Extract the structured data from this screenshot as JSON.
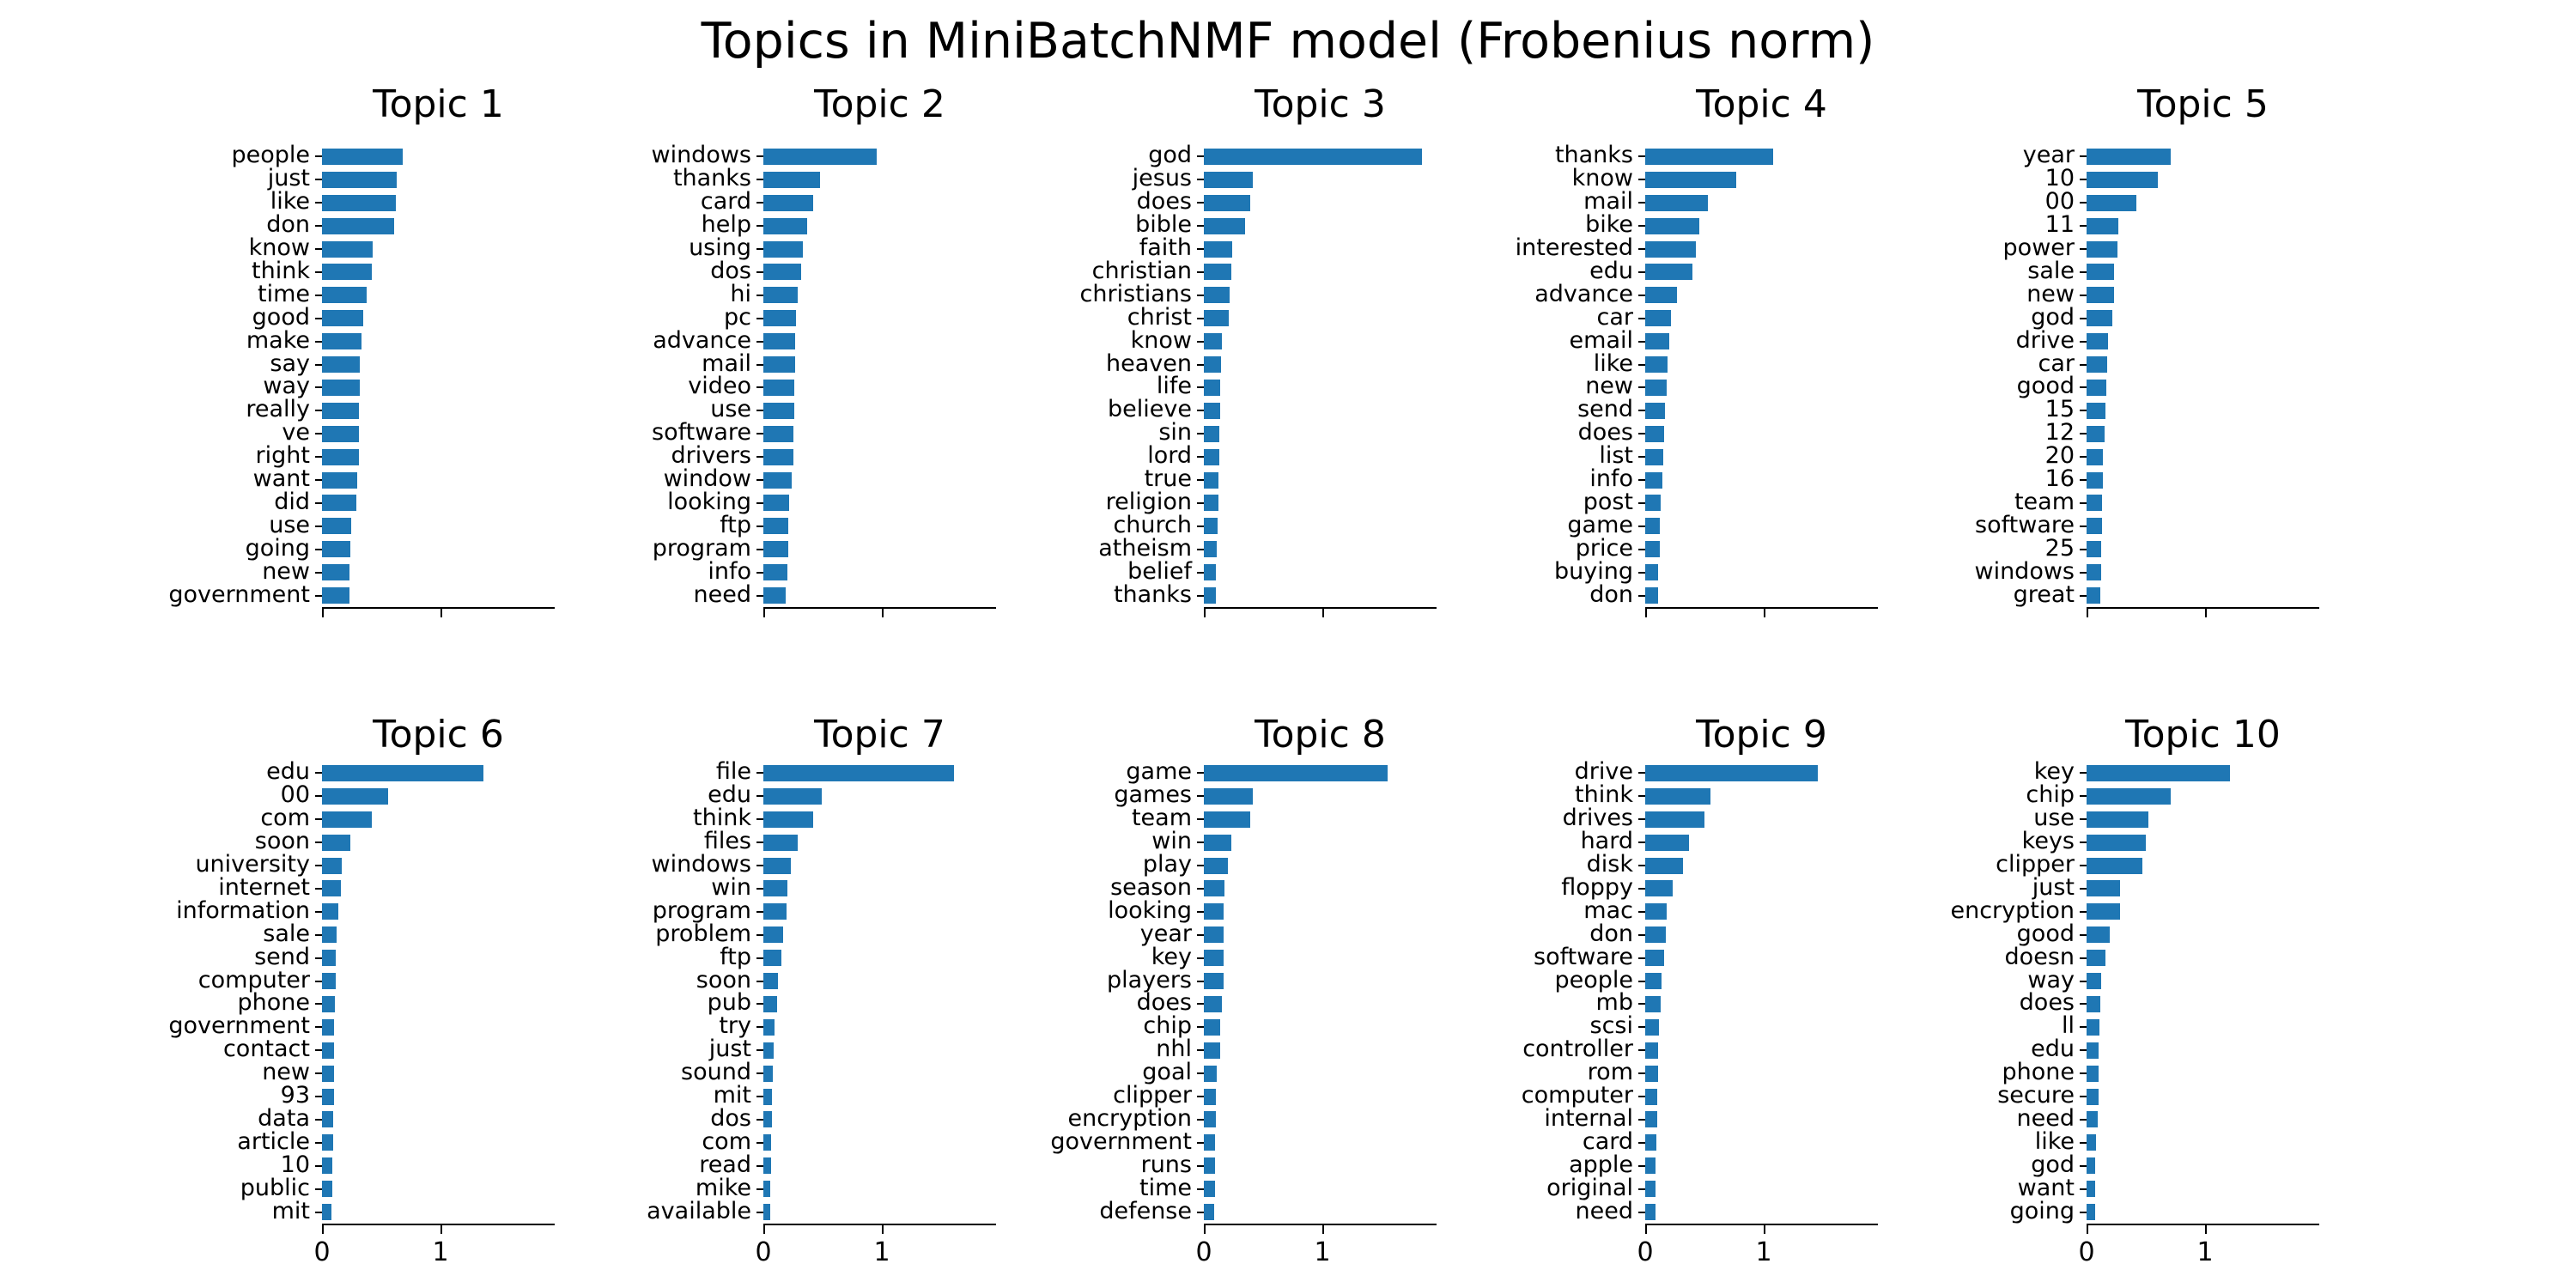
{
  "figure": {
    "title": "Topics in MiniBatchNMF model (Frobenius norm)",
    "bar_color": "#1f77b4",
    "text_color": "#000000",
    "xtick_labels": [
      "0",
      "1"
    ]
  },
  "chart_data": [
    {
      "type": "bar",
      "orientation": "horizontal",
      "title": "Topic 1",
      "xlim": [
        0,
        1.96
      ],
      "xticks": [
        0,
        1
      ],
      "categories": [
        "people",
        "just",
        "like",
        "don",
        "know",
        "think",
        "time",
        "good",
        "make",
        "say",
        "way",
        "really",
        "ve",
        "right",
        "want",
        "did",
        "use",
        "going",
        "new",
        "government"
      ],
      "values": [
        0.68,
        0.63,
        0.62,
        0.61,
        0.43,
        0.42,
        0.38,
        0.35,
        0.33,
        0.32,
        0.32,
        0.315,
        0.31,
        0.31,
        0.295,
        0.29,
        0.245,
        0.24,
        0.235,
        0.23
      ]
    },
    {
      "type": "bar",
      "orientation": "horizontal",
      "title": "Topic 2",
      "xlim": [
        0,
        1.96
      ],
      "xticks": [
        0,
        1
      ],
      "categories": [
        "windows",
        "thanks",
        "card",
        "help",
        "using",
        "dos",
        "hi",
        "pc",
        "advance",
        "mail",
        "video",
        "use",
        "software",
        "drivers",
        "window",
        "looking",
        "ftp",
        "program",
        "info",
        "need"
      ],
      "values": [
        0.96,
        0.48,
        0.42,
        0.37,
        0.335,
        0.32,
        0.29,
        0.275,
        0.27,
        0.265,
        0.26,
        0.26,
        0.255,
        0.25,
        0.24,
        0.215,
        0.21,
        0.21,
        0.2,
        0.19
      ]
    },
    {
      "type": "bar",
      "orientation": "horizontal",
      "title": "Topic 3",
      "xlim": [
        0,
        1.96
      ],
      "xticks": [
        0,
        1
      ],
      "categories": [
        "god",
        "jesus",
        "does",
        "bible",
        "faith",
        "christian",
        "christians",
        "christ",
        "know",
        "heaven",
        "life",
        "believe",
        "sin",
        "lord",
        "true",
        "religion",
        "church",
        "atheism",
        "belief",
        "thanks"
      ],
      "values": [
        1.84,
        0.41,
        0.39,
        0.35,
        0.24,
        0.235,
        0.22,
        0.21,
        0.15,
        0.145,
        0.14,
        0.137,
        0.134,
        0.13,
        0.125,
        0.12,
        0.115,
        0.11,
        0.105,
        0.103
      ]
    },
    {
      "type": "bar",
      "orientation": "horizontal",
      "title": "Topic 4",
      "xlim": [
        0,
        1.96
      ],
      "xticks": [
        0,
        1
      ],
      "categories": [
        "thanks",
        "know",
        "mail",
        "bike",
        "interested",
        "edu",
        "advance",
        "car",
        "email",
        "like",
        "new",
        "send",
        "does",
        "list",
        "info",
        "post",
        "game",
        "price",
        "buying",
        "don"
      ],
      "values": [
        1.08,
        0.77,
        0.53,
        0.46,
        0.43,
        0.4,
        0.27,
        0.22,
        0.2,
        0.19,
        0.18,
        0.17,
        0.16,
        0.155,
        0.145,
        0.13,
        0.125,
        0.12,
        0.112,
        0.11
      ]
    },
    {
      "type": "bar",
      "orientation": "horizontal",
      "title": "Topic 5",
      "xlim": [
        0,
        1.96
      ],
      "xticks": [
        0,
        1
      ],
      "categories": [
        "year",
        "10",
        "00",
        "11",
        "power",
        "sale",
        "new",
        "god",
        "drive",
        "car",
        "good",
        "15",
        "12",
        "20",
        "16",
        "team",
        "software",
        "25",
        "windows",
        "great"
      ],
      "values": [
        0.71,
        0.6,
        0.42,
        0.265,
        0.26,
        0.235,
        0.23,
        0.22,
        0.18,
        0.177,
        0.17,
        0.157,
        0.152,
        0.14,
        0.138,
        0.13,
        0.128,
        0.122,
        0.12,
        0.116
      ]
    },
    {
      "type": "bar",
      "orientation": "horizontal",
      "title": "Topic 6",
      "xlim": [
        0,
        1.96
      ],
      "xticks": [
        0,
        1
      ],
      "categories": [
        "edu",
        "00",
        "com",
        "soon",
        "university",
        "internet",
        "information",
        "sale",
        "send",
        "computer",
        "phone",
        "government",
        "contact",
        "new",
        "93",
        "data",
        "article",
        "10",
        "public",
        "mit"
      ],
      "values": [
        1.36,
        0.56,
        0.42,
        0.24,
        0.17,
        0.16,
        0.14,
        0.12,
        0.115,
        0.113,
        0.112,
        0.105,
        0.103,
        0.102,
        0.1,
        0.095,
        0.094,
        0.09,
        0.088,
        0.08
      ]
    },
    {
      "type": "bar",
      "orientation": "horizontal",
      "title": "Topic 7",
      "xlim": [
        0,
        1.96
      ],
      "xticks": [
        0,
        1
      ],
      "categories": [
        "file",
        "edu",
        "think",
        "files",
        "windows",
        "win",
        "program",
        "problem",
        "ftp",
        "soon",
        "pub",
        "try",
        "just",
        "sound",
        "mit",
        "dos",
        "com",
        "read",
        "mike",
        "available"
      ],
      "values": [
        1.61,
        0.49,
        0.42,
        0.29,
        0.23,
        0.205,
        0.195,
        0.17,
        0.15,
        0.12,
        0.117,
        0.097,
        0.085,
        0.077,
        0.072,
        0.07,
        0.068,
        0.063,
        0.06,
        0.058
      ]
    },
    {
      "type": "bar",
      "orientation": "horizontal",
      "title": "Topic 8",
      "xlim": [
        0,
        1.96
      ],
      "xticks": [
        0,
        1
      ],
      "categories": [
        "game",
        "games",
        "team",
        "win",
        "play",
        "season",
        "looking",
        "year",
        "key",
        "players",
        "does",
        "chip",
        "nhl",
        "goal",
        "clipper",
        "encryption",
        "government",
        "runs",
        "time",
        "defense"
      ],
      "values": [
        1.55,
        0.41,
        0.39,
        0.235,
        0.2,
        0.175,
        0.17,
        0.168,
        0.166,
        0.164,
        0.154,
        0.14,
        0.135,
        0.108,
        0.1,
        0.099,
        0.096,
        0.093,
        0.092,
        0.084
      ]
    },
    {
      "type": "bar",
      "orientation": "horizontal",
      "title": "Topic 9",
      "xlim": [
        0,
        1.96
      ],
      "xticks": [
        0,
        1
      ],
      "categories": [
        "drive",
        "think",
        "drives",
        "hard",
        "disk",
        "floppy",
        "mac",
        "don",
        "software",
        "people",
        "mb",
        "scsi",
        "controller",
        "rom",
        "computer",
        "internal",
        "card",
        "apple",
        "original",
        "need"
      ],
      "values": [
        1.46,
        0.55,
        0.5,
        0.37,
        0.32,
        0.23,
        0.18,
        0.175,
        0.157,
        0.14,
        0.133,
        0.118,
        0.111,
        0.106,
        0.102,
        0.1,
        0.097,
        0.09,
        0.089,
        0.085
      ]
    },
    {
      "type": "bar",
      "orientation": "horizontal",
      "title": "Topic 10",
      "xlim": [
        0,
        1.96
      ],
      "xticks": [
        0,
        1
      ],
      "categories": [
        "key",
        "chip",
        "use",
        "keys",
        "clipper",
        "just",
        "encryption",
        "good",
        "doesn",
        "way",
        "does",
        "ll",
        "edu",
        "phone",
        "secure",
        "need",
        "like",
        "god",
        "want",
        "going"
      ],
      "values": [
        1.21,
        0.71,
        0.52,
        0.5,
        0.47,
        0.285,
        0.28,
        0.195,
        0.16,
        0.125,
        0.117,
        0.107,
        0.103,
        0.102,
        0.1,
        0.095,
        0.083,
        0.072,
        0.07,
        0.07
      ]
    }
  ]
}
